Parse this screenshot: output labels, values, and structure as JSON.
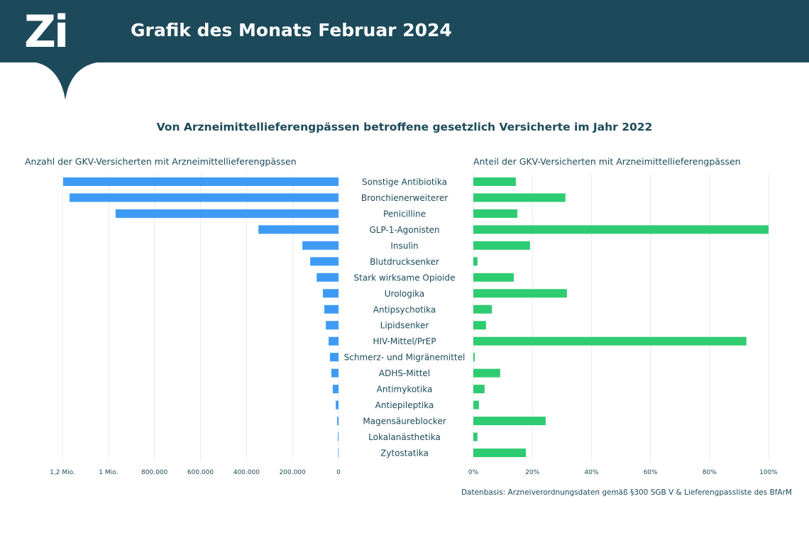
{
  "header": {
    "logo": "Zi",
    "title": "Grafik des Monats Februar 2024"
  },
  "chart_data": {
    "type": "bar",
    "title": "Von Arzneimittellieferengpässen betroffene gesetzlich Versicherte im Jahr 2022",
    "categories": [
      "Sonstige Antibiotika",
      "Bronchienerweiterer",
      "Penicilline",
      "GLP-1-Agonisten",
      "Insulin",
      "Blutdrucksenker",
      "Stark wirksame Opioide",
      "Urologika",
      "Antipsychotika",
      "Lipidsenker",
      "HIV-Mittel/PrEP",
      "Schmerz- und Migränemittel",
      "ADHS-Mittel",
      "Antimykotika",
      "Antiepileptika",
      "Magensäureblocker",
      "Lokalanästhetika",
      "Zytostatika"
    ],
    "left": {
      "label": "Anzahl der GKV-Versicherten mit Arzneimittellieferengpässen",
      "xlim": [
        0,
        1200000
      ],
      "ticks": [
        {
          "value": 1200000,
          "label": "1,2 Mio."
        },
        {
          "value": 1000000,
          "label": "1 Mio."
        },
        {
          "value": 800000,
          "label": "800.000"
        },
        {
          "value": 600000,
          "label": "600.000"
        },
        {
          "value": 400000,
          "label": "400.000"
        },
        {
          "value": 200000,
          "label": "200.000"
        },
        {
          "value": 0,
          "label": "0"
        }
      ],
      "values": [
        1197000,
        1169000,
        969000,
        348000,
        157000,
        123000,
        95000,
        68000,
        62000,
        55000,
        43000,
        37000,
        31000,
        25000,
        12000,
        6000,
        3000,
        1500
      ],
      "color": "#3d9bf5"
    },
    "right": {
      "label": "Anteil der GKV-Versicherten mit Arzneimittellieferengpässen",
      "xlim": [
        0,
        100
      ],
      "ticks": [
        {
          "value": 0,
          "label": "0%"
        },
        {
          "value": 20,
          "label": "20%"
        },
        {
          "value": 40,
          "label": "40%"
        },
        {
          "value": 60,
          "label": "60%"
        },
        {
          "value": 80,
          "label": "80%"
        },
        {
          "value": 100,
          "label": "100%"
        }
      ],
      "values": [
        14.4,
        31.2,
        14.9,
        100,
        19.2,
        1.4,
        13.7,
        31.7,
        6.3,
        4.3,
        92.5,
        0.5,
        9.1,
        3.8,
        1.9,
        24.5,
        1.4,
        17.8
      ],
      "color": "#2ecc71"
    },
    "source": "Datenbasis: Arzneiverordnungsdaten gemäß §300 SGB V & Lieferengpassliste des BfArM"
  }
}
